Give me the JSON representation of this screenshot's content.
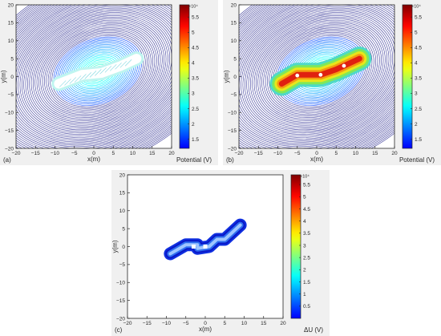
{
  "colors": {
    "panel_bg": "#f0f0f0",
    "axis": "#262626",
    "contour": "#3a3aa0"
  },
  "chart_data": [
    {
      "type": "heatmap",
      "panel_label": "(a)",
      "style": "contour-lines",
      "x": {
        "label": "x(m)",
        "range": [
          -20,
          20
        ],
        "ticks": [
          "-20",
          "-15",
          "-10",
          "-5",
          "0",
          "5",
          "10",
          "15",
          "20"
        ]
      },
      "y": {
        "label": "y(m)",
        "range": [
          -20,
          20
        ],
        "ticks": [
          "20",
          "15",
          "10",
          "5",
          "0",
          "-5",
          "-10",
          "-15",
          "-20"
        ]
      },
      "colorbar": {
        "label": "Potential (V)",
        "multiplier": "×10⁴",
        "range": [
          1.2,
          5.9
        ],
        "ticks": [
          "5.5",
          "5",
          "4.5",
          "4",
          "3.5",
          "3",
          "2.5",
          "2",
          "1.5"
        ]
      },
      "conductor_path": [
        [
          -9,
          -2
        ],
        [
          -3,
          0.5
        ],
        [
          2,
          1
        ],
        [
          7,
          3
        ],
        [
          11,
          5
        ]
      ]
    },
    {
      "type": "heatmap",
      "panel_label": "(b)",
      "style": "filled-contour",
      "x": {
        "label": "x(m)",
        "range": [
          -20,
          20
        ],
        "ticks": [
          "-20",
          "-15",
          "-10",
          "-5",
          "0",
          "5",
          "10",
          "15",
          "20"
        ]
      },
      "y": {
        "label": "y(m)",
        "range": [
          -20,
          20
        ],
        "ticks": [
          "20",
          "15",
          "10",
          "5",
          "0",
          "-5",
          "-10",
          "-15",
          "-20"
        ]
      },
      "colorbar": {
        "label": "Potential (V)",
        "multiplier": "×10⁴",
        "range": [
          1.2,
          5.9
        ],
        "ticks": [
          "5.5",
          "5",
          "4.5",
          "4",
          "3.5",
          "3",
          "2.5",
          "2",
          "1.5"
        ]
      },
      "conductor_path": [
        [
          -9,
          -2
        ],
        [
          -5,
          0.5
        ],
        [
          1,
          0.5
        ],
        [
          5,
          2
        ],
        [
          11,
          5
        ]
      ]
    },
    {
      "type": "heatmap",
      "panel_label": "(c)",
      "style": "filled-contour",
      "x": {
        "label": "x(m)",
        "range": [
          -20,
          20
        ],
        "ticks": [
          "-20",
          "-15",
          "-10",
          "-5",
          "0",
          "5",
          "10",
          "15",
          "20"
        ]
      },
      "y": {
        "label": "y(m)",
        "range": [
          -20,
          20
        ],
        "ticks": [
          "20",
          "15",
          "10",
          "5",
          "0",
          "-5",
          "-10",
          "-15",
          "-20"
        ]
      },
      "colorbar": {
        "label": "ΔU (V)",
        "multiplier": "×10⁴",
        "range": [
          0,
          5.9
        ],
        "ticks": [
          "5.5",
          "5",
          "4.5",
          "4",
          "3.5",
          "3",
          "2.5",
          "2",
          "1.5",
          "1",
          "0.5"
        ]
      },
      "conductor_path": [
        [
          -9,
          -2
        ],
        [
          -5,
          0.5
        ],
        [
          -2,
          0.5
        ],
        [
          -2,
          -0.5
        ],
        [
          1,
          0
        ],
        [
          3,
          2
        ],
        [
          5,
          2
        ],
        [
          9,
          6
        ]
      ]
    }
  ]
}
